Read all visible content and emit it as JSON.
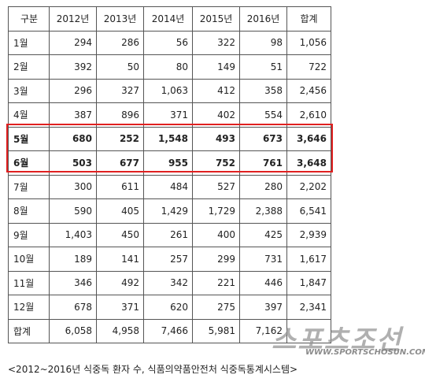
{
  "table": {
    "header": [
      "구분",
      "2012년",
      "2013년",
      "2014년",
      "2015년",
      "2016년",
      "합계"
    ],
    "rows": [
      [
        "1월",
        "294",
        "286",
        "56",
        "322",
        "98",
        "1,056"
      ],
      [
        "2월",
        "392",
        "50",
        "80",
        "149",
        "51",
        "722"
      ],
      [
        "3월",
        "296",
        "327",
        "1,063",
        "412",
        "358",
        "2,456"
      ],
      [
        "4월",
        "387",
        "896",
        "371",
        "402",
        "554",
        "2,610"
      ],
      [
        "5월",
        "680",
        "252",
        "1,548",
        "493",
        "673",
        "3,646"
      ],
      [
        "6월",
        "503",
        "677",
        "955",
        "752",
        "761",
        "3,648"
      ],
      [
        "7월",
        "300",
        "611",
        "484",
        "527",
        "280",
        "2,202"
      ],
      [
        "8월",
        "590",
        "405",
        "1,429",
        "1,729",
        "2,388",
        "6,541"
      ],
      [
        "9월",
        "1,403",
        "450",
        "261",
        "400",
        "425",
        "2,939"
      ],
      [
        "10월",
        "189",
        "141",
        "257",
        "299",
        "731",
        "1,617"
      ],
      [
        "11월",
        "346",
        "492",
        "342",
        "221",
        "446",
        "1,847"
      ],
      [
        "12월",
        "678",
        "371",
        "620",
        "275",
        "397",
        "2,341"
      ],
      [
        "합계",
        "6,058",
        "4,958",
        "7,466",
        "5,981",
        "7,162"
      ]
    ]
  },
  "caption": "<2012~2016년 식중독 환자 수, 식품의약품안전처 식중독통계시스템>",
  "watermark": {
    "logo": "스포츠조선",
    "url": "WWW.SPORTSCHOSUN.COM"
  }
}
